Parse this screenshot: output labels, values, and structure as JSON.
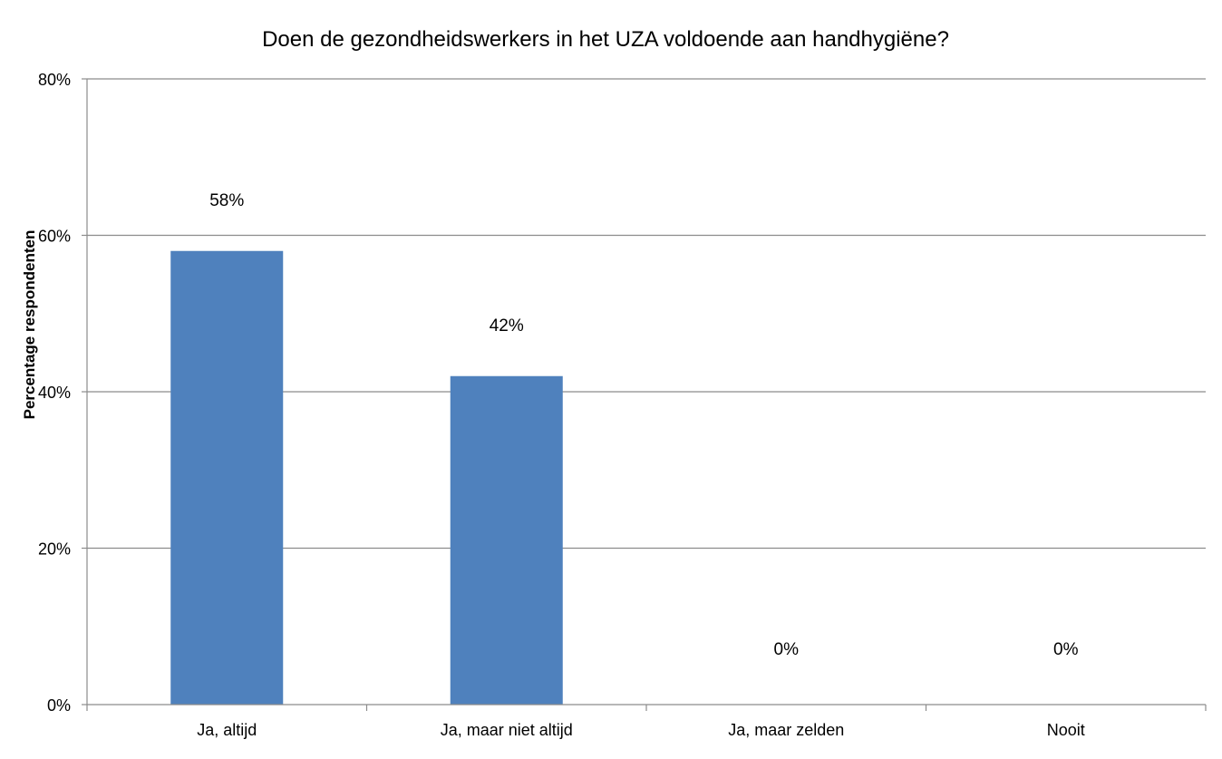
{
  "chart_data": {
    "type": "bar",
    "title": "Doen de gezondheidswerkers in het UZA voldoende aan handhygiëne?",
    "xlabel": "",
    "ylabel": "Percentage  respondenten",
    "categories": [
      "Ja, altijd",
      "Ja, maar niet altijd",
      "Ja, maar zelden",
      "Nooit"
    ],
    "values": [
      58,
      42,
      0,
      0
    ],
    "data_labels": [
      "58%",
      "42%",
      "0%",
      "0%"
    ],
    "ylim": [
      0,
      80
    ],
    "yticks": [
      0,
      20,
      40,
      60,
      80
    ],
    "ytick_labels": [
      "0%",
      "20%",
      "40%",
      "60%",
      "80%"
    ],
    "grid": true,
    "legend": "none",
    "bar_color": "#4f81bd"
  }
}
